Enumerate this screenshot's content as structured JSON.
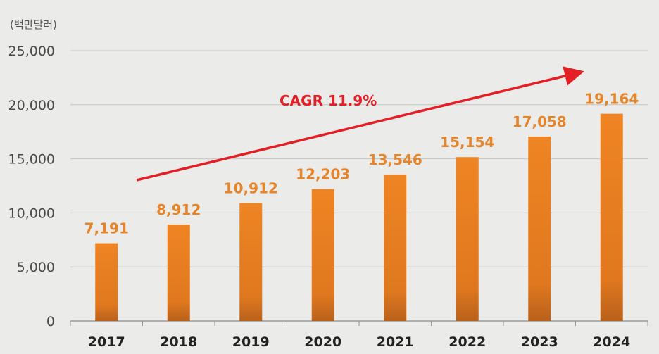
{
  "chart_data": {
    "type": "bar",
    "unit_label": "(백만달러)",
    "categories": [
      "2017",
      "2018",
      "2019",
      "2020",
      "2021",
      "2022",
      "2023",
      "2024"
    ],
    "values": [
      7191,
      8912,
      10912,
      12203,
      13546,
      15154,
      17058,
      19164
    ],
    "data_labels": [
      "7,191",
      "8,912",
      "10,912",
      "12,203",
      "13,546",
      "15,154",
      "17,058",
      "19,164"
    ],
    "y_ticks": [
      0,
      5000,
      10000,
      15000,
      20000,
      25000
    ],
    "y_tick_labels": [
      "0",
      "5,000",
      "10,000",
      "15,000",
      "20,000",
      "25,000"
    ],
    "ylim": [
      0,
      25000
    ],
    "grid": true,
    "annotation": {
      "text": "CAGR 11.9%",
      "type": "arrow",
      "direction": "up-right"
    },
    "colors": {
      "bar_top": "#ee8423",
      "bar_bottom": "#b8611c",
      "data_label": "#e6842a",
      "annotation": "#e31e24",
      "gridline": "#c4c4c4"
    }
  }
}
